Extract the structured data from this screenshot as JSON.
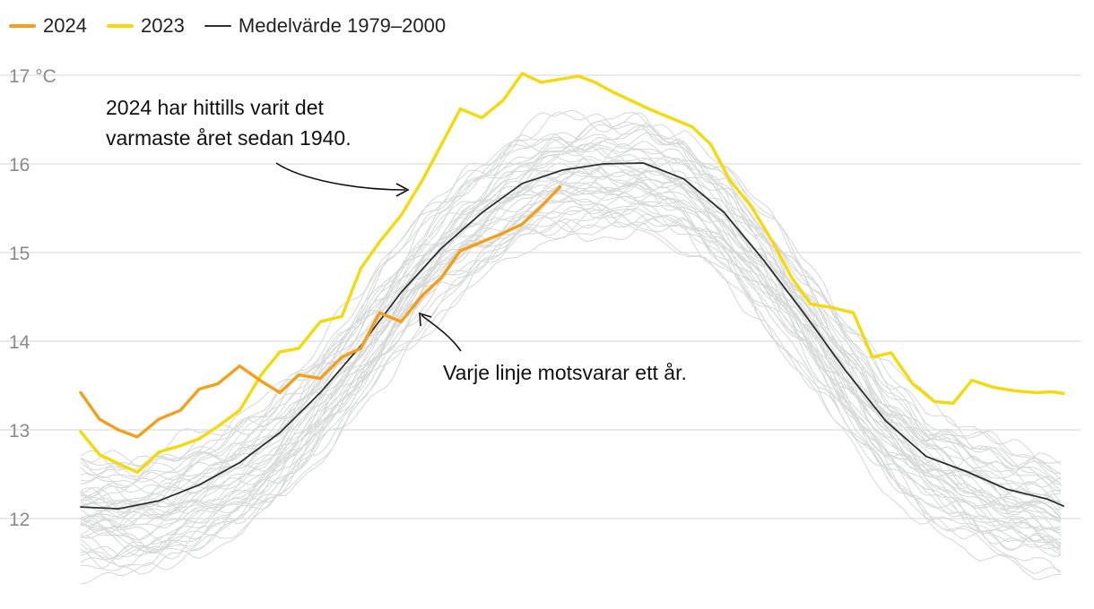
{
  "legend": {
    "items": [
      {
        "label": "2024",
        "color": "#f29f1b"
      },
      {
        "label": "2023",
        "color": "#f4d90b"
      },
      {
        "label": "Medelvärde 1979–2000",
        "color": "#2b2e33"
      }
    ]
  },
  "chart_data": {
    "type": "line",
    "title": "",
    "xlabel": "",
    "ylabel": "",
    "unit": "°C",
    "x_range": [
      1,
      366
    ],
    "ylim": [
      11.0,
      17.0
    ],
    "yticks": [
      {
        "value": 12,
        "label": "12"
      },
      {
        "value": 13,
        "label": "13"
      },
      {
        "value": 14,
        "label": "14"
      },
      {
        "value": 15,
        "label": "15"
      },
      {
        "value": 16,
        "label": "16"
      },
      {
        "value": 17,
        "label": "17 °C"
      }
    ],
    "grid": true,
    "legend_position": "top-left",
    "background_years": {
      "count": 45,
      "color": "#d8dada",
      "annotation": "Varje linje motsvarar ett år."
    },
    "series": [
      {
        "name": "Medelvärde 1979–2000",
        "color": "#2b2e33",
        "x": [
          1,
          15,
          30,
          45,
          60,
          75,
          90,
          105,
          120,
          135,
          150,
          165,
          180,
          195,
          210,
          225,
          240,
          255,
          270,
          285,
          300,
          315,
          330,
          345,
          360,
          366
        ],
        "y": [
          12.13,
          12.11,
          12.2,
          12.38,
          12.63,
          12.97,
          13.42,
          13.95,
          14.55,
          15.05,
          15.45,
          15.78,
          15.93,
          16.0,
          16.01,
          15.83,
          15.45,
          14.9,
          14.3,
          13.67,
          13.1,
          12.7,
          12.53,
          12.33,
          12.22,
          12.14
        ]
      },
      {
        "name": "2023",
        "color": "#f4d90b",
        "x": [
          1,
          8,
          15,
          22,
          30,
          38,
          45,
          52,
          60,
          68,
          75,
          82,
          90,
          98,
          105,
          112,
          120,
          128,
          135,
          142,
          150,
          158,
          165,
          172,
          180,
          186,
          192,
          198,
          205,
          212,
          220,
          228,
          235,
          242,
          250,
          258,
          265,
          272,
          280,
          288,
          295,
          302,
          310,
          318,
          325,
          332,
          340,
          348,
          356,
          362,
          366
        ],
        "y": [
          12.98,
          12.72,
          12.62,
          12.52,
          12.75,
          12.82,
          12.9,
          13.04,
          13.22,
          13.62,
          13.88,
          13.92,
          14.22,
          14.28,
          14.82,
          15.12,
          15.42,
          15.82,
          16.22,
          16.62,
          16.52,
          16.72,
          17.02,
          16.92,
          16.96,
          16.99,
          16.92,
          16.82,
          16.72,
          16.62,
          16.52,
          16.42,
          16.22,
          15.82,
          15.52,
          15.12,
          14.72,
          14.42,
          14.38,
          14.32,
          13.82,
          13.87,
          13.52,
          13.32,
          13.3,
          13.56,
          13.48,
          13.44,
          13.42,
          13.43,
          13.41
        ]
      },
      {
        "name": "2024",
        "color": "#f29f1b",
        "x": [
          1,
          8,
          15,
          22,
          30,
          38,
          45,
          52,
          60,
          68,
          75,
          82,
          90,
          98,
          105,
          112,
          120,
          128,
          135,
          142,
          150,
          158,
          165,
          172,
          179
        ],
        "y": [
          13.42,
          13.12,
          13.0,
          12.92,
          13.12,
          13.22,
          13.46,
          13.52,
          13.72,
          13.55,
          13.42,
          13.62,
          13.58,
          13.82,
          13.92,
          14.32,
          14.22,
          14.52,
          14.72,
          15.02,
          15.12,
          15.22,
          15.32,
          15.52,
          15.74
        ]
      }
    ],
    "annotations": [
      {
        "text_lines": [
          "2024 har hittills varit det",
          "varmaste året sedan 1940."
        ]
      },
      {
        "text_lines": [
          "Varje linje motsvarar ett år."
        ]
      }
    ]
  }
}
